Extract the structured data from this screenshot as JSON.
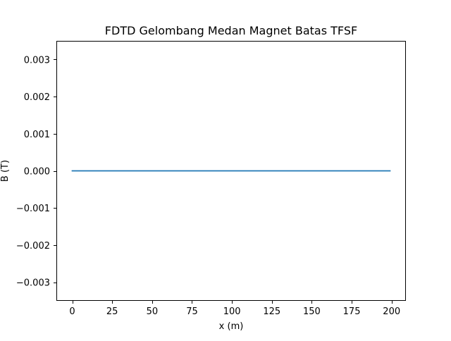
{
  "chart_data": {
    "type": "line",
    "title": "FDTD Gelombang Medan Magnet Batas TFSF",
    "xlabel": "x (m)",
    "ylabel": "B (T)",
    "xlim": [
      -9.95,
      208.95
    ],
    "ylim": [
      -0.0035,
      0.0035
    ],
    "xticks": [
      0,
      25,
      50,
      75,
      100,
      125,
      150,
      175,
      200
    ],
    "xtick_labels": [
      "0",
      "25",
      "50",
      "75",
      "100",
      "125",
      "150",
      "175",
      "200"
    ],
    "yticks": [
      0.003,
      0.002,
      0.001,
      0.0,
      -0.001,
      -0.002,
      -0.003
    ],
    "ytick_labels": [
      "0.003",
      "0.002",
      "0.001",
      "0.000",
      "−0.001",
      "−0.002",
      "−0.003"
    ],
    "grid": false,
    "series": [
      {
        "color": "#1f77b4",
        "x": [
          0,
          199
        ],
        "y": [
          0,
          0
        ]
      }
    ]
  }
}
